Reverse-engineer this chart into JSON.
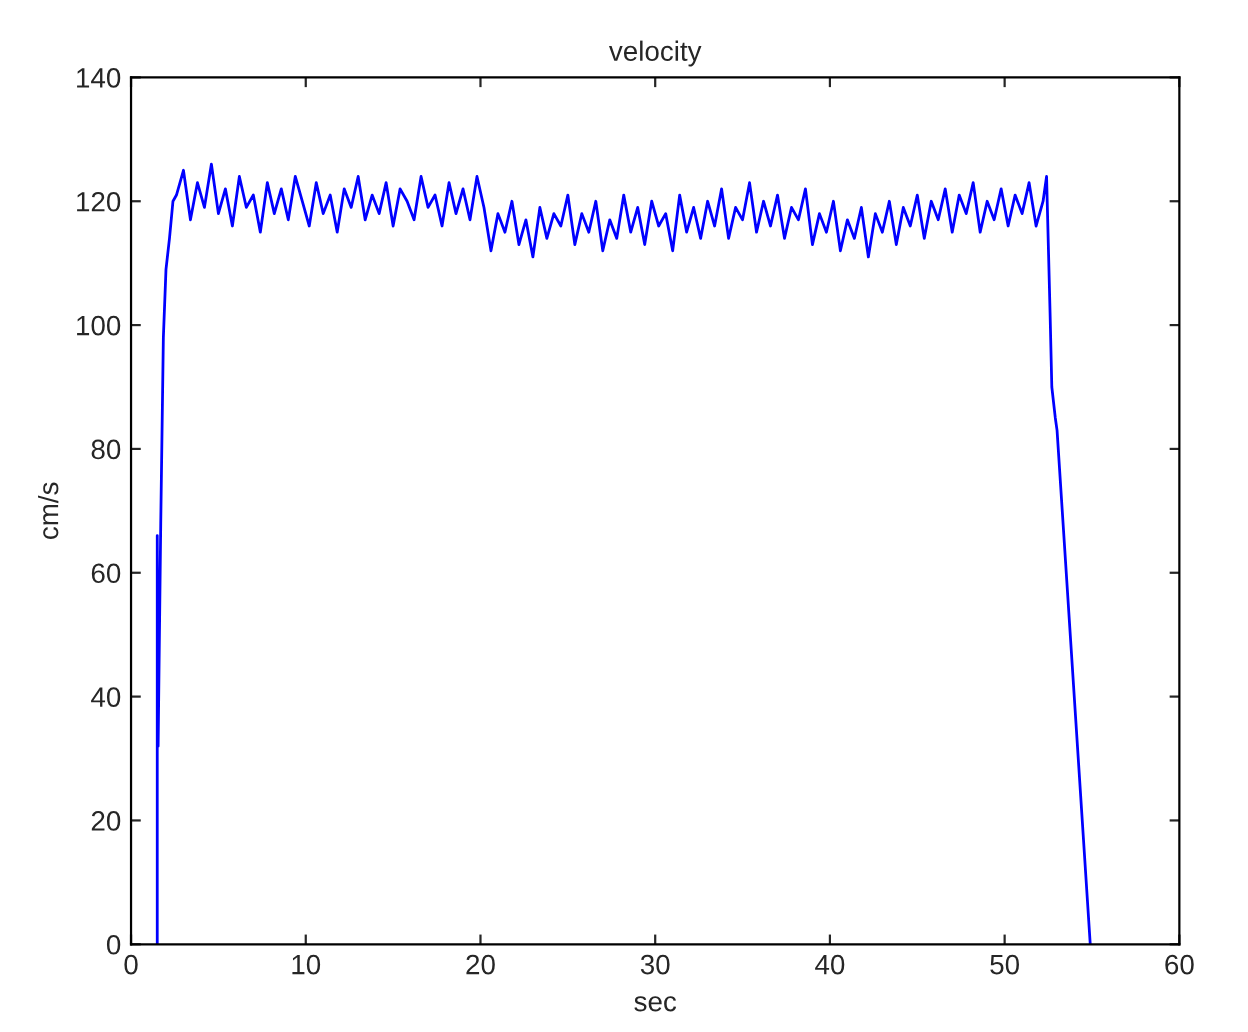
{
  "chart_data": {
    "type": "line",
    "title": "velocity",
    "xlabel": "sec",
    "ylabel": "cm/s",
    "xlim": [
      0,
      60
    ],
    "xticks": [
      0,
      10,
      20,
      30,
      40,
      50,
      60
    ],
    "ylim": [
      0,
      140
    ],
    "yticks": [
      0,
      20,
      40,
      60,
      80,
      100,
      120,
      140
    ],
    "series": [
      {
        "color": "#0000ff",
        "x": [
          1.5,
          1.5,
          1.55,
          1.7,
          1.85,
          2.0,
          2.2,
          2.4,
          2.6,
          3.0,
          3.4,
          3.8,
          4.2,
          4.6,
          5.0,
          5.4,
          5.8,
          6.2,
          6.6,
          7.0,
          7.4,
          7.8,
          8.2,
          8.6,
          9.0,
          9.4,
          9.8,
          10.2,
          10.6,
          11.0,
          11.4,
          11.8,
          12.2,
          12.6,
          13.0,
          13.4,
          13.8,
          14.2,
          14.6,
          15.0,
          15.4,
          15.8,
          16.2,
          16.6,
          17.0,
          17.4,
          17.8,
          18.2,
          18.6,
          19.0,
          19.4,
          19.8,
          20.2,
          20.6,
          21.0,
          21.4,
          21.8,
          22.2,
          22.6,
          23.0,
          23.4,
          23.8,
          24.2,
          24.6,
          25.0,
          25.4,
          25.8,
          26.2,
          26.6,
          27.0,
          27.4,
          27.8,
          28.2,
          28.6,
          29.0,
          29.4,
          29.8,
          30.2,
          30.6,
          31.0,
          31.4,
          31.8,
          32.2,
          32.6,
          33.0,
          33.4,
          33.8,
          34.2,
          34.6,
          35.0,
          35.4,
          35.8,
          36.2,
          36.6,
          37.0,
          37.4,
          37.8,
          38.2,
          38.6,
          39.0,
          39.4,
          39.8,
          40.2,
          40.6,
          41.0,
          41.4,
          41.8,
          42.2,
          42.6,
          43.0,
          43.4,
          43.8,
          44.2,
          44.6,
          45.0,
          45.4,
          45.8,
          46.2,
          46.6,
          47.0,
          47.4,
          47.8,
          48.2,
          48.6,
          49.0,
          49.4,
          49.8,
          50.2,
          50.6,
          51.0,
          51.4,
          51.8,
          52.2,
          52.4,
          52.6,
          52.7,
          52.9,
          53.0,
          54.9
        ],
        "values": [
          0,
          66,
          32,
          68,
          98,
          109,
          114,
          120,
          121,
          125,
          117,
          123,
          119,
          126,
          118,
          122,
          116,
          124,
          119,
          121,
          115,
          123,
          118,
          122,
          117,
          124,
          120,
          116,
          123,
          118,
          121,
          115,
          122,
          119,
          124,
          117,
          121,
          118,
          123,
          116,
          122,
          120,
          117,
          124,
          119,
          121,
          116,
          123,
          118,
          122,
          117,
          124,
          119,
          112,
          118,
          115,
          120,
          113,
          117,
          111,
          119,
          114,
          118,
          116,
          121,
          113,
          118,
          115,
          120,
          112,
          117,
          114,
          121,
          115,
          119,
          113,
          120,
          116,
          118,
          112,
          121,
          115,
          119,
          114,
          120,
          116,
          122,
          114,
          119,
          117,
          123,
          115,
          120,
          116,
          121,
          114,
          119,
          117,
          122,
          113,
          118,
          115,
          120,
          112,
          117,
          114,
          119,
          111,
          118,
          115,
          120,
          113,
          119,
          116,
          121,
          114,
          120,
          117,
          122,
          115,
          121,
          118,
          123,
          115,
          120,
          117,
          122,
          116,
          121,
          118,
          123,
          116,
          120,
          124,
          102,
          90,
          85,
          83,
          0
        ]
      }
    ]
  }
}
